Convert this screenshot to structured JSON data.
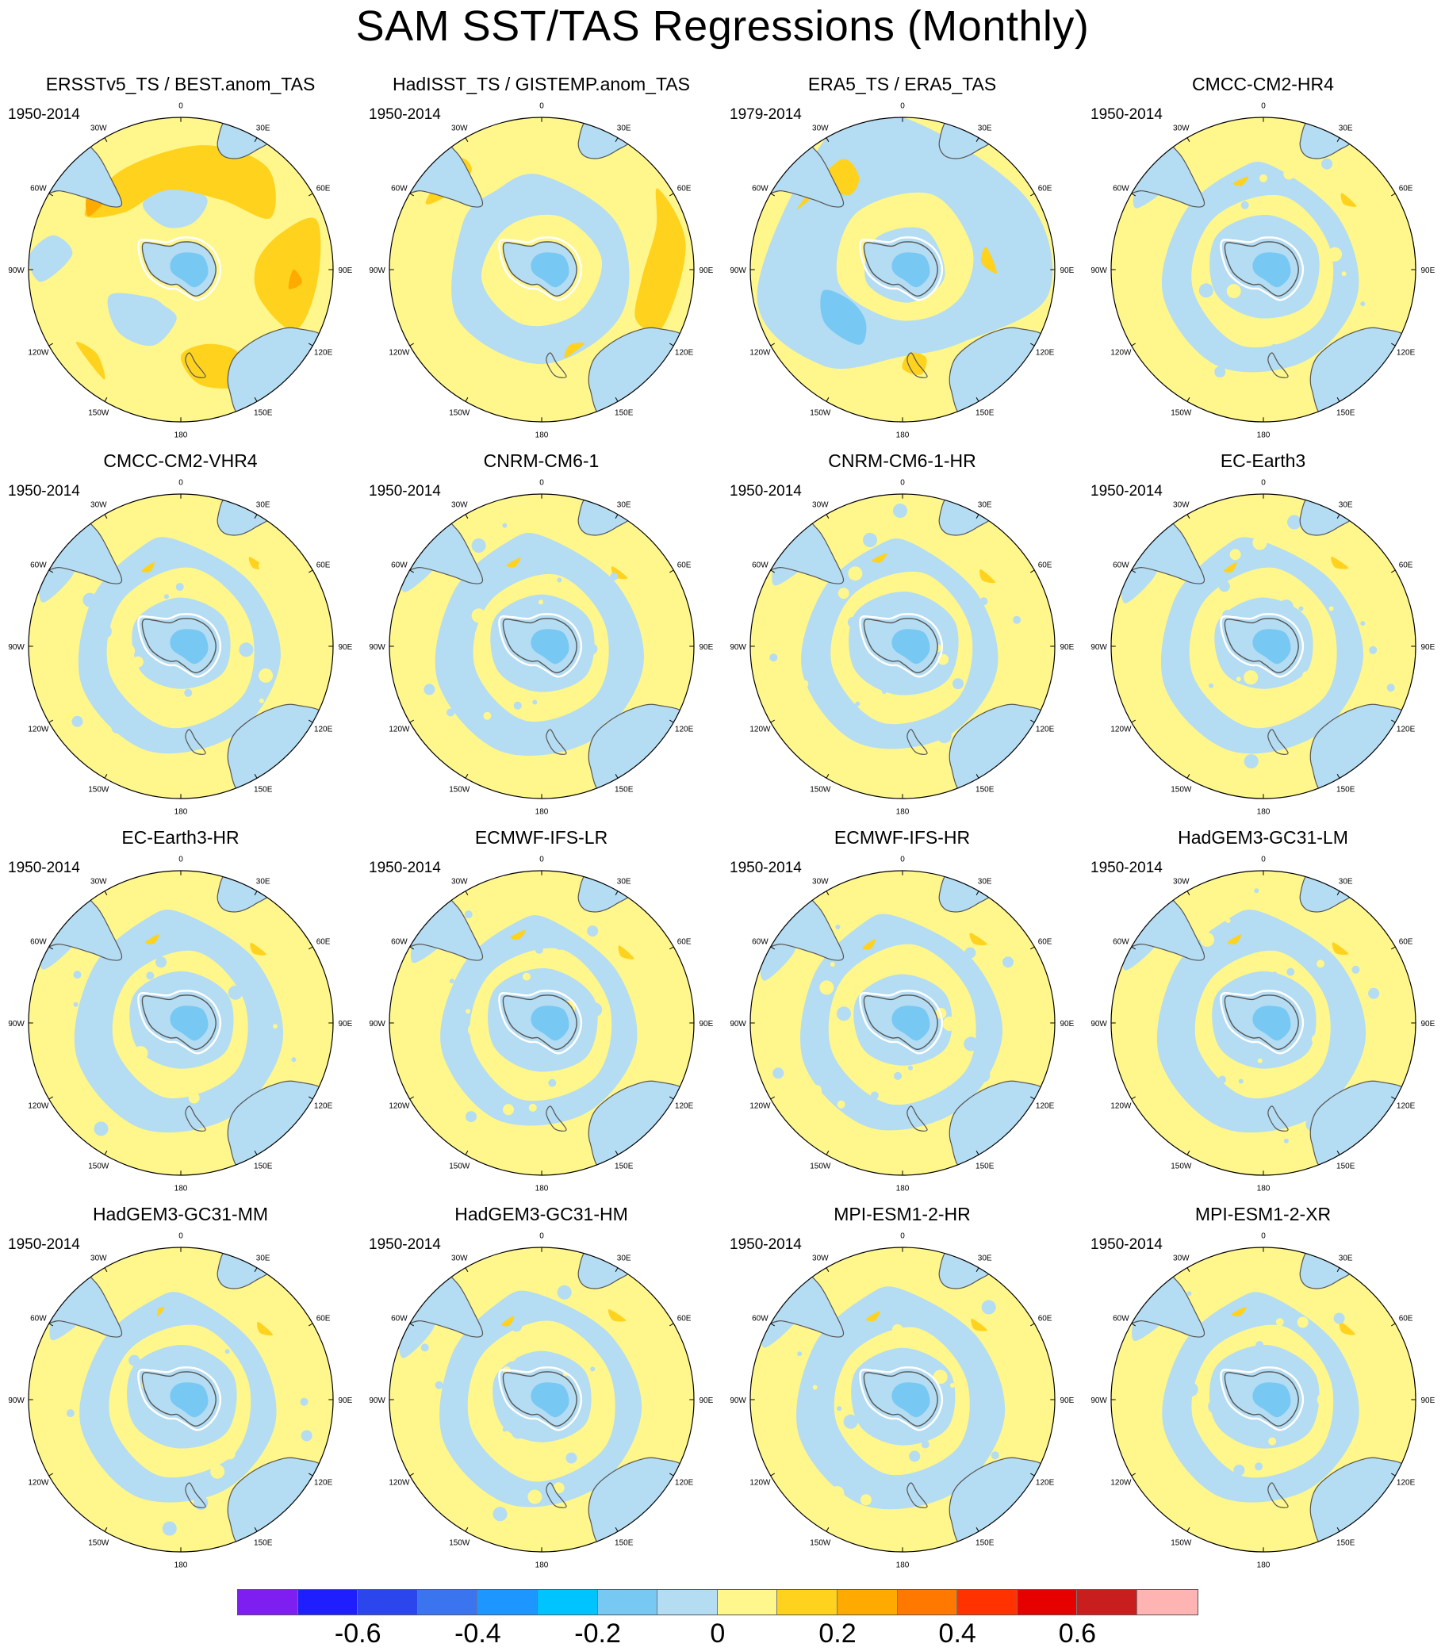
{
  "title": "SAM SST/TAS Regressions (Monthly)",
  "lon_labels": [
    "0",
    "30E",
    "60E",
    "90E",
    "120E",
    "150E",
    "180",
    "150W",
    "120W",
    "90W",
    "60W",
    "30W"
  ],
  "panels": [
    {
      "title": "ERSSTv5_TS / BEST.anom_TAS",
      "period": "1950-2014",
      "pattern": "strong"
    },
    {
      "title": "HadISST_TS / GISTEMP.anom_TAS",
      "period": "1950-2014",
      "pattern": "medium"
    },
    {
      "title": "ERA5_TS / ERA5_TAS",
      "period": "1979-2014",
      "pattern": "era"
    },
    {
      "title": "CMCC-CM2-HR4",
      "period": "1950-2014",
      "pattern": "model"
    },
    {
      "title": "CMCC-CM2-VHR4",
      "period": "1950-2014",
      "pattern": "model"
    },
    {
      "title": "CNRM-CM6-1",
      "period": "1950-2014",
      "pattern": "model"
    },
    {
      "title": "CNRM-CM6-1-HR",
      "period": "1950-2014",
      "pattern": "model"
    },
    {
      "title": "EC-Earth3",
      "period": "1950-2014",
      "pattern": "model"
    },
    {
      "title": "EC-Earth3-HR",
      "period": "1950-2014",
      "pattern": "model"
    },
    {
      "title": "ECMWF-IFS-LR",
      "period": "1950-2014",
      "pattern": "model"
    },
    {
      "title": "ECMWF-IFS-HR",
      "period": "1950-2014",
      "pattern": "model"
    },
    {
      "title": "HadGEM3-GC31-LM",
      "period": "1950-2014",
      "pattern": "model"
    },
    {
      "title": "HadGEM3-GC31-MM",
      "period": "1950-2014",
      "pattern": "model"
    },
    {
      "title": "HadGEM3-GC31-HM",
      "period": "1950-2014",
      "pattern": "model"
    },
    {
      "title": "MPI-ESM1-2-HR",
      "period": "1950-2014",
      "pattern": "model"
    },
    {
      "title": "MPI-ESM1-2-XR",
      "period": "1950-2014",
      "pattern": "model"
    }
  ],
  "colorbar": {
    "colors": [
      "#7e1ef0",
      "#1e1eff",
      "#2c46ee",
      "#3a74ee",
      "#1e96ff",
      "#00c4ff",
      "#78c8f4",
      "#b4dcf2",
      "#fff68c",
      "#ffd21e",
      "#ffaa00",
      "#ff7800",
      "#ff3200",
      "#e60000",
      "#c81e1e",
      "#ffb4b4"
    ],
    "labels": [
      "-0.6",
      "-0.4",
      "-0.2",
      "0",
      "0.2",
      "0.4",
      "0.6"
    ]
  },
  "palette": {
    "light_blue": "#b4dcf2",
    "mid_blue": "#78c8f4",
    "light_yellow": "#fff68c",
    "gold": "#ffd21e",
    "orange": "#ffaa00",
    "deep_orange": "#ff7800",
    "coast": "#555555",
    "ice_edge": "#ffffff"
  }
}
